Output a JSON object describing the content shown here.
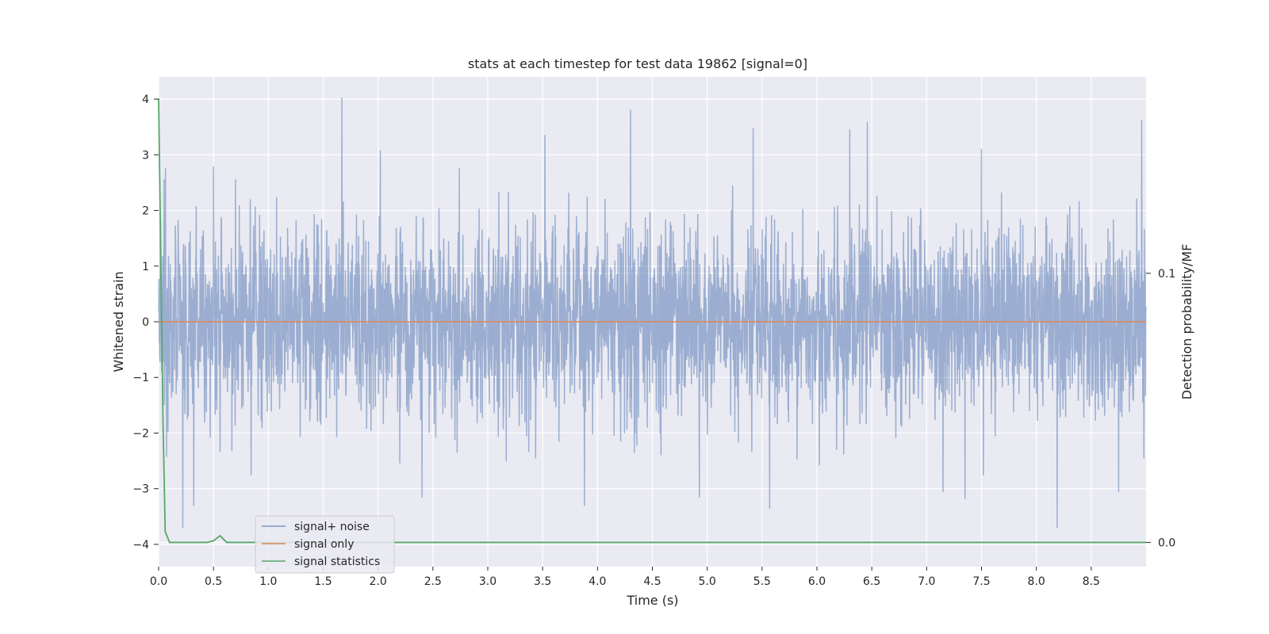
{
  "chart_data": {
    "type": "line",
    "title": "stats at each timestep for test data 19862 [signal=0]",
    "xlabel": "Time (s)",
    "ylabel": "Whitened strain",
    "y2label": "Detection probability/MF",
    "xlim": [
      0.0,
      9.0
    ],
    "ylim": [
      -4.4,
      4.4
    ],
    "y2lim": [
      -0.009,
      0.173
    ],
    "x_ticks": [
      0.0,
      0.5,
      1.0,
      1.5,
      2.0,
      2.5,
      3.0,
      3.5,
      4.0,
      4.5,
      5.0,
      5.5,
      6.0,
      6.5,
      7.0,
      7.5,
      8.0,
      8.5
    ],
    "x_tick_labels": [
      "0.0",
      "0.5",
      "1.0",
      "1.5",
      "2.0",
      "2.5",
      "3.0",
      "3.5",
      "4.0",
      "4.5",
      "5.0",
      "5.5",
      "6.0",
      "6.5",
      "7.0",
      "7.5",
      "8.0",
      "8.5"
    ],
    "y_ticks": [
      4,
      3,
      2,
      1,
      0,
      -1,
      -2,
      -3,
      -4
    ],
    "y_tick_labels": [
      "4",
      "3",
      "2",
      "1",
      "0",
      "−1",
      "−2",
      "−3",
      "−4"
    ],
    "y2_ticks": [
      0.1,
      0.0
    ],
    "y2_tick_labels": [
      "0.1",
      "0.0"
    ],
    "grid": true,
    "legend_position": "lower-left",
    "noise": {
      "num_points": 3600,
      "spikes": [
        {
          "x": 1.67,
          "y": 4.02
        },
        {
          "x": 2.02,
          "y": 3.07
        },
        {
          "x": 3.52,
          "y": 3.35
        },
        {
          "x": 4.3,
          "y": 3.8
        },
        {
          "x": 5.42,
          "y": 3.47
        },
        {
          "x": 6.3,
          "y": 3.45
        },
        {
          "x": 6.46,
          "y": 3.58
        },
        {
          "x": 7.5,
          "y": 3.1
        },
        {
          "x": 8.96,
          "y": 3.62
        },
        {
          "x": 0.05,
          "y": 2.55
        },
        {
          "x": 0.5,
          "y": 2.78
        },
        {
          "x": 0.22,
          "y": -3.7
        },
        {
          "x": 0.32,
          "y": -3.3
        },
        {
          "x": 2.4,
          "y": -3.15
        },
        {
          "x": 3.88,
          "y": -3.3
        },
        {
          "x": 4.93,
          "y": -3.15
        },
        {
          "x": 5.57,
          "y": -3.35
        },
        {
          "x": 7.15,
          "y": -3.05
        },
        {
          "x": 7.35,
          "y": -3.18
        },
        {
          "x": 8.19,
          "y": -3.7
        },
        {
          "x": 8.75,
          "y": -3.05
        },
        {
          "x": 8.98,
          "y": -2.45
        }
      ]
    },
    "series": [
      {
        "name": "signal+ noise",
        "color": "#4c72b0",
        "opacity": 0.5,
        "axis": "left"
      },
      {
        "name": "signal only",
        "color": "#dd8452",
        "axis": "left",
        "x": [
          0.0,
          9.0
        ],
        "y": [
          0.0,
          0.0
        ]
      },
      {
        "name": "signal statistics",
        "color": "#55a868",
        "axis": "right",
        "x": [
          0.0,
          0.02,
          0.04,
          0.06,
          0.08,
          0.1,
          0.12,
          0.2,
          0.3,
          0.44,
          0.5,
          0.56,
          0.62,
          0.7,
          1.0,
          9.0
        ],
        "y": [
          0.165,
          0.105,
          0.045,
          0.004,
          0.002,
          0.0,
          0.0,
          0.0,
          0.0,
          0.0,
          0.0006,
          0.0025,
          0.0,
          0.0,
          0.0,
          0.0
        ]
      }
    ]
  }
}
